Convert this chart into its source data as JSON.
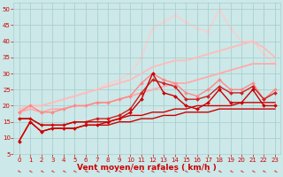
{
  "title": "",
  "xlabel": "Vent moyen/en rafales ( km/h )",
  "ylabel": "",
  "xlim": [
    -0.5,
    23.5
  ],
  "ylim": [
    5,
    52
  ],
  "yticks": [
    5,
    10,
    15,
    20,
    25,
    30,
    35,
    40,
    45,
    50
  ],
  "xticks": [
    0,
    1,
    2,
    3,
    4,
    5,
    6,
    7,
    8,
    9,
    10,
    11,
    12,
    13,
    14,
    15,
    16,
    17,
    18,
    19,
    20,
    21,
    22,
    23
  ],
  "bg_color": "#cce8e8",
  "grid_color": "#aacfcf",
  "lines": [
    {
      "comment": "dark red - bottom smooth line (nearly linear, slow rise)",
      "x": [
        0,
        1,
        2,
        3,
        4,
        5,
        6,
        7,
        8,
        9,
        10,
        11,
        12,
        13,
        14,
        15,
        16,
        17,
        18,
        19,
        20,
        21,
        22,
        23
      ],
      "y": [
        9,
        15,
        12,
        13,
        13,
        13,
        14,
        14,
        14,
        15,
        15,
        16,
        16,
        17,
        17,
        18,
        18,
        18,
        19,
        19,
        19,
        19,
        19,
        19
      ],
      "color": "#cc0000",
      "linewidth": 1.0,
      "marker": null,
      "markersize": 0,
      "zorder": 6
    },
    {
      "comment": "dark red with diamonds - spiky line",
      "x": [
        0,
        1,
        2,
        3,
        4,
        5,
        6,
        7,
        8,
        9,
        10,
        11,
        12,
        13,
        14,
        15,
        16,
        17,
        18,
        19,
        20,
        21,
        22,
        23
      ],
      "y": [
        9,
        15,
        12,
        13,
        13,
        13,
        14,
        14,
        15,
        16,
        18,
        22,
        30,
        24,
        23,
        20,
        19,
        21,
        25,
        21,
        21,
        25,
        20,
        20
      ],
      "color": "#cc0000",
      "linewidth": 1.0,
      "marker": "D",
      "markersize": 2.0,
      "zorder": 5
    },
    {
      "comment": "dark red smooth - second from bottom linear",
      "x": [
        0,
        1,
        2,
        3,
        4,
        5,
        6,
        7,
        8,
        9,
        10,
        11,
        12,
        13,
        14,
        15,
        16,
        17,
        18,
        19,
        20,
        21,
        22,
        23
      ],
      "y": [
        16,
        16,
        14,
        14,
        14,
        15,
        15,
        15,
        15,
        16,
        17,
        17,
        18,
        18,
        19,
        19,
        20,
        20,
        20,
        20,
        21,
        21,
        21,
        21
      ],
      "color": "#cc0000",
      "linewidth": 1.0,
      "marker": null,
      "markersize": 0,
      "zorder": 6
    },
    {
      "comment": "medium red with diamonds - moderate zigzag",
      "x": [
        0,
        1,
        2,
        3,
        4,
        5,
        6,
        7,
        8,
        9,
        10,
        11,
        12,
        13,
        14,
        15,
        16,
        17,
        18,
        19,
        20,
        21,
        22,
        23
      ],
      "y": [
        16,
        16,
        14,
        14,
        14,
        15,
        15,
        16,
        16,
        17,
        19,
        24,
        28,
        27,
        26,
        22,
        22,
        23,
        26,
        24,
        24,
        26,
        22,
        24
      ],
      "color": "#cc2222",
      "linewidth": 1.0,
      "marker": "D",
      "markersize": 2.0,
      "zorder": 4
    },
    {
      "comment": "light pink smooth line - lower linear trend",
      "x": [
        0,
        1,
        2,
        3,
        4,
        5,
        6,
        7,
        8,
        9,
        10,
        11,
        12,
        13,
        14,
        15,
        16,
        17,
        18,
        19,
        20,
        21,
        22,
        23
      ],
      "y": [
        18,
        19,
        18,
        19,
        19,
        20,
        20,
        21,
        21,
        22,
        23,
        24,
        25,
        26,
        27,
        27,
        28,
        29,
        30,
        31,
        32,
        33,
        33,
        33
      ],
      "color": "#ffaaaa",
      "linewidth": 1.3,
      "marker": null,
      "markersize": 0,
      "zorder": 2
    },
    {
      "comment": "light pink smooth - upper linear trend",
      "x": [
        0,
        1,
        2,
        3,
        4,
        5,
        6,
        7,
        8,
        9,
        10,
        11,
        12,
        13,
        14,
        15,
        16,
        17,
        18,
        19,
        20,
        21,
        22,
        23
      ],
      "y": [
        19,
        20,
        20,
        21,
        22,
        23,
        24,
        25,
        26,
        27,
        28,
        30,
        32,
        33,
        34,
        34,
        35,
        36,
        37,
        38,
        39,
        40,
        38,
        35
      ],
      "color": "#ffbbbb",
      "linewidth": 1.3,
      "marker": null,
      "markersize": 0,
      "zorder": 2
    },
    {
      "comment": "medium pink with diamonds - mid zigzag",
      "x": [
        0,
        1,
        2,
        3,
        4,
        5,
        6,
        7,
        8,
        9,
        10,
        11,
        12,
        13,
        14,
        15,
        16,
        17,
        18,
        19,
        20,
        21,
        22,
        23
      ],
      "y": [
        18,
        20,
        18,
        18,
        19,
        20,
        20,
        21,
        21,
        22,
        23,
        27,
        30,
        28,
        27,
        24,
        23,
        25,
        28,
        25,
        25,
        27,
        22,
        25
      ],
      "color": "#ff8888",
      "linewidth": 1.0,
      "marker": "D",
      "markersize": 2.0,
      "zorder": 3
    },
    {
      "comment": "very light pink with diamonds - top zigzag peaking ~48-49",
      "x": [
        0,
        1,
        2,
        3,
        4,
        5,
        6,
        7,
        8,
        9,
        10,
        11,
        12,
        13,
        14,
        15,
        16,
        17,
        18,
        19,
        20,
        21,
        22,
        23
      ],
      "y": [
        19,
        20,
        20,
        21,
        22,
        23,
        24,
        25,
        27,
        28,
        30,
        35,
        44,
        46,
        48,
        46,
        44,
        43,
        50,
        44,
        40,
        40,
        36,
        33
      ],
      "color": "#ffcccc",
      "linewidth": 1.0,
      "marker": "D",
      "markersize": 2.0,
      "zorder": 1
    }
  ],
  "tick_label_color": "#cc0000",
  "tick_fontsize": 5.0,
  "xlabel_fontsize": 6.5,
  "xlabel_color": "#cc0000",
  "ytick_label_color": "#cc0000",
  "wind_arrow_color": "#cc0000"
}
